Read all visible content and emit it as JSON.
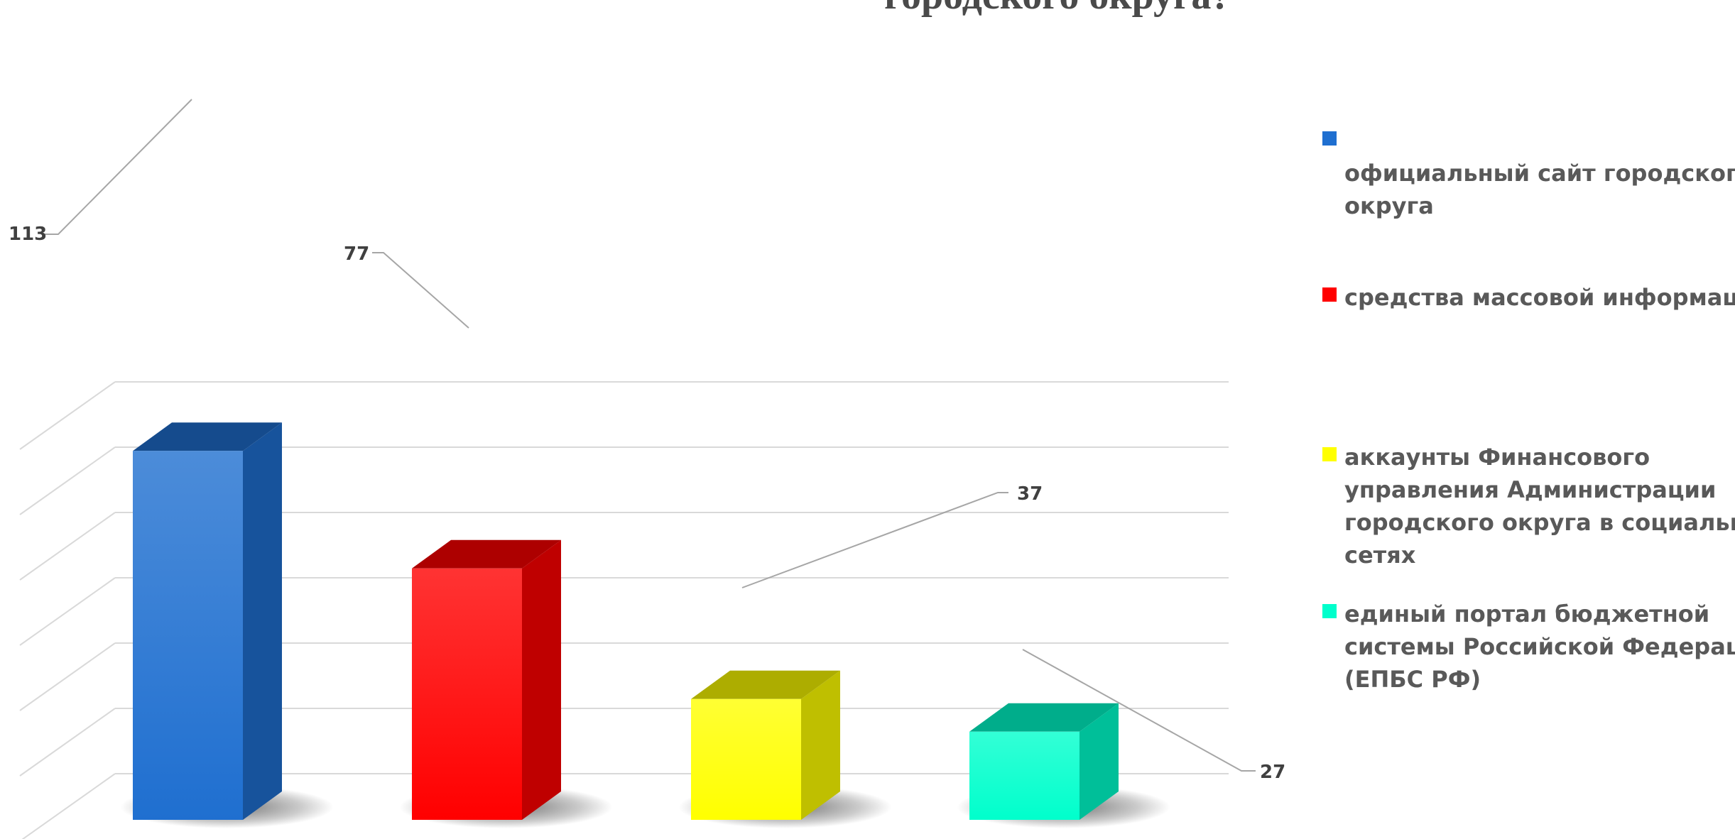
{
  "chart_data": {
    "type": "bar",
    "title": "городского округа?",
    "categories": [
      "официальный сайт городского округа",
      "средства массовой информации",
      "аккаунты Финансового управления Администрации городского округа в социальных сетях",
      "единый портал бюджетной системы Российской Федерации (ЕПБС РФ)"
    ],
    "values": [
      113,
      77,
      37,
      27
    ],
    "value_labels": [
      "113",
      "77",
      "37",
      "27"
    ],
    "colors": [
      "#1f6fd0",
      "#ff0000",
      "#ffff00",
      "#00ffcc"
    ],
    "legend": [
      {
        "lines": [
          "официальный сайт городского",
          "округа"
        ],
        "color": "#1f6fd0"
      },
      {
        "lines": [
          "средства массовой информации"
        ],
        "color": "#ff0000"
      },
      {
        "lines": [
          "аккаунты Финансового",
          "управления Администрации",
          "городского округа в социальных",
          "сетях"
        ],
        "color": "#ffff00"
      },
      {
        "lines": [
          "единый портал бюджетной",
          "системы Российской Федерации",
          "(ЕПБС РФ)"
        ],
        "color": "#00ffcc"
      }
    ],
    "legend_position": "right",
    "ylim": [
      0,
      120
    ],
    "grid": true,
    "style": "3d-column"
  }
}
